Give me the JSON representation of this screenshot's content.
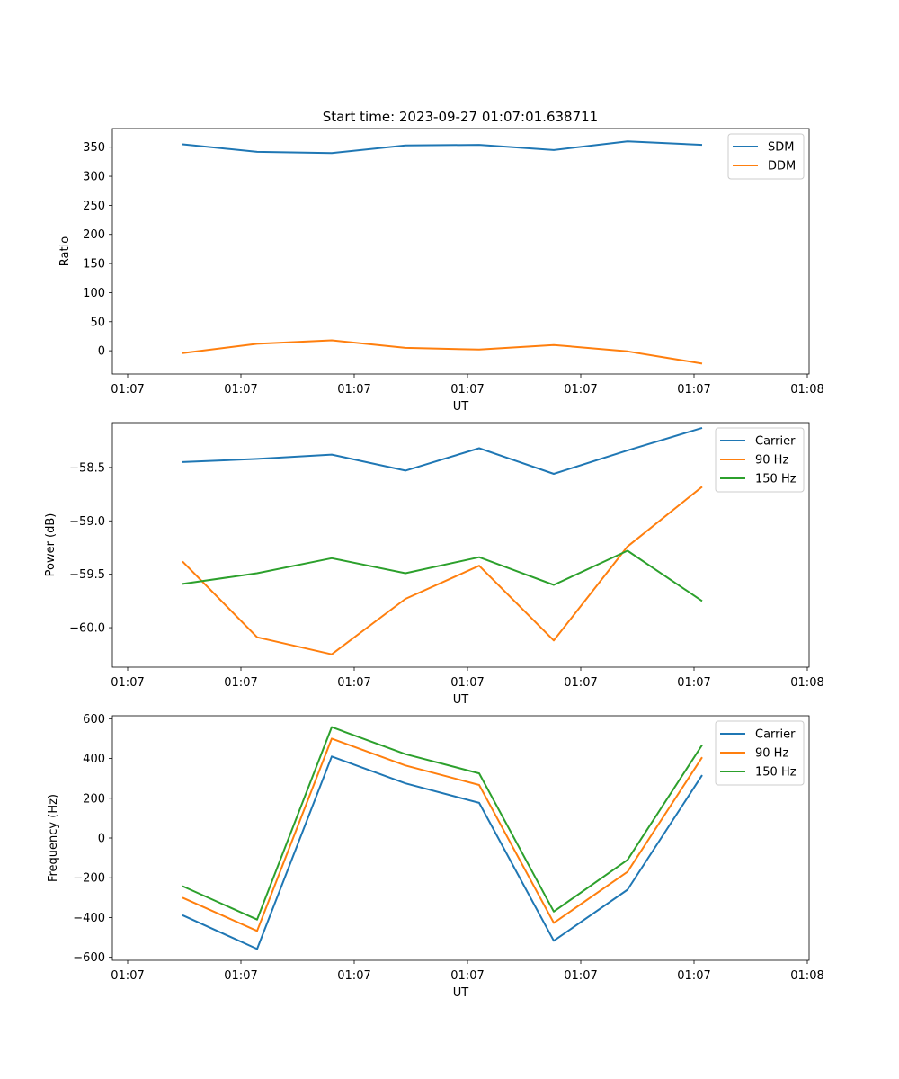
{
  "figure_title": "Start time: 2023-09-27 01:07:01.638711",
  "chart_data": [
    {
      "type": "line",
      "title": "Start time: 2023-09-27 01:07:01.638711",
      "xlabel": "UT",
      "ylabel": "Ratio",
      "x_ticks": [
        "01:07",
        "01:07",
        "01:07",
        "01:07",
        "01:07",
        "01:07",
        "01:08"
      ],
      "y_ticks": [
        0,
        50,
        100,
        150,
        200,
        250,
        300,
        350
      ],
      "ylim": [
        -40,
        382
      ],
      "legend_position": "top-right",
      "series": [
        {
          "name": "SDM",
          "color": "#1f77b4",
          "values": [
            355,
            342,
            340,
            353,
            354,
            345,
            360,
            354
          ]
        },
        {
          "name": "DDM",
          "color": "#ff7f0e",
          "values": [
            -4,
            12,
            18,
            5,
            2,
            10,
            -1,
            -22
          ]
        }
      ]
    },
    {
      "type": "line",
      "title": "",
      "xlabel": "UT",
      "ylabel": "Power (dB)",
      "x_ticks": [
        "01:07",
        "01:07",
        "01:07",
        "01:07",
        "01:07",
        "01:07",
        "01:08"
      ],
      "y_ticks": [
        "−58.5",
        "−59.0",
        "−59.5",
        "−60.0"
      ],
      "y_tick_values": [
        -58.5,
        -59.0,
        -59.5,
        -60.0
      ],
      "ylim": [
        -60.37,
        -58.08
      ],
      "legend_position": "top-right",
      "series": [
        {
          "name": "Carrier",
          "color": "#1f77b4",
          "values": [
            -58.45,
            -58.42,
            -58.38,
            -58.53,
            -58.32,
            -58.56,
            -58.34,
            -58.13
          ]
        },
        {
          "name": "90 Hz",
          "color": "#ff7f0e",
          "values": [
            -59.38,
            -60.09,
            -60.25,
            -59.73,
            -59.42,
            -60.12,
            -59.24,
            -58.68
          ]
        },
        {
          "name": "150 Hz",
          "color": "#2ca02c",
          "values": [
            -59.59,
            -59.49,
            -59.35,
            -59.49,
            -59.34,
            -59.6,
            -59.28,
            -59.75
          ]
        }
      ]
    },
    {
      "type": "line",
      "title": "",
      "xlabel": "UT",
      "ylabel": "Frequency (Hz)",
      "x_ticks": [
        "01:07",
        "01:07",
        "01:07",
        "01:07",
        "01:07",
        "01:07",
        "01:08"
      ],
      "y_ticks": [
        "600",
        "400",
        "200",
        "0",
        "−200",
        "−400",
        "−600"
      ],
      "y_tick_values": [
        600,
        400,
        200,
        0,
        -200,
        -400,
        -600
      ],
      "ylim": [
        -615,
        615
      ],
      "legend_position": "top-right",
      "series": [
        {
          "name": "Carrier",
          "color": "#1f77b4",
          "values": [
            -388,
            -558,
            410,
            275,
            177,
            -517,
            -260,
            316
          ]
        },
        {
          "name": "90 Hz",
          "color": "#ff7f0e",
          "values": [
            -300,
            -467,
            500,
            365,
            267,
            -427,
            -170,
            406
          ]
        },
        {
          "name": "150 Hz",
          "color": "#2ca02c",
          "values": [
            -242,
            -410,
            558,
            422,
            325,
            -370,
            -110,
            468
          ]
        }
      ]
    }
  ]
}
